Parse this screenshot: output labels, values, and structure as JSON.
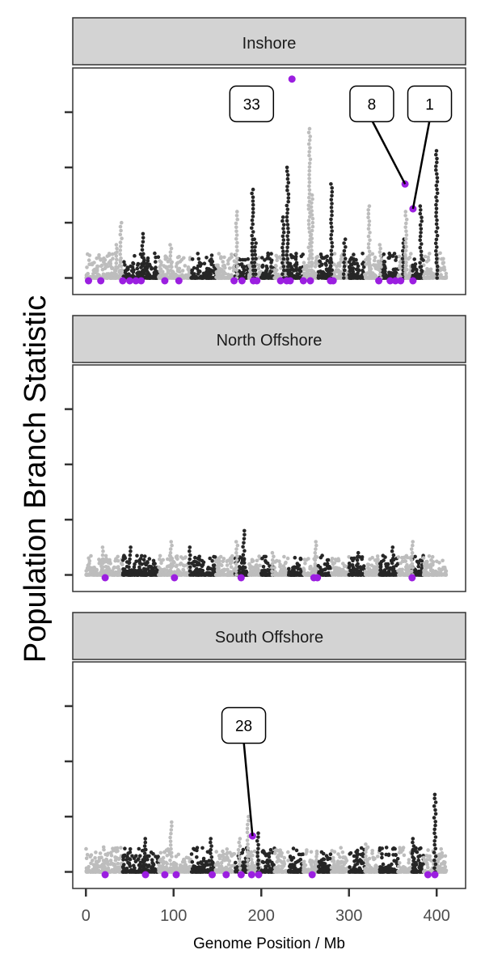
{
  "chart_data": {
    "type": "scatter",
    "ylabel": "Population Branch Statistic",
    "xlabel": "Genome Position / Mb",
    "x_ticks": [
      0,
      100,
      200,
      300,
      400
    ],
    "xlim": [
      -15,
      433
    ],
    "point_colors": [
      "#bdbdbd",
      "#262626"
    ],
    "highlight_color": "#9b1ee0",
    "panels": [
      {
        "title": "Inshore",
        "ylim": [
          -0.03,
          0.38
        ],
        "y_ticks": [
          0.0,
          0.1,
          0.2,
          0.3
        ],
        "outliers": [
          {
            "x": 235,
            "y": 0.36
          },
          {
            "x": 364,
            "y": 0.17
          },
          {
            "x": 373,
            "y": 0.125
          }
        ],
        "labels": [
          {
            "text": "33",
            "x": 189,
            "y": 0.315
          },
          {
            "text": "8",
            "x": 326,
            "y": 0.315,
            "target_x": 364,
            "target_y": 0.17
          },
          {
            "text": "1",
            "x": 392,
            "y": 0.315,
            "target_x": 373,
            "target_y": 0.125
          }
        ],
        "sweep_regions": [
          3,
          17,
          42,
          50,
          57,
          63,
          90,
          106,
          169,
          178,
          191,
          195,
          222,
          229,
          233,
          248,
          256,
          279,
          282,
          334,
          347,
          353,
          359,
          373
        ],
        "peaks": [
          {
            "x": 35,
            "h": 0.06,
            "c": 0
          },
          {
            "x": 40,
            "h": 0.1,
            "c": 0
          },
          {
            "x": 65,
            "h": 0.08,
            "c": 1
          },
          {
            "x": 97,
            "h": 0.06,
            "c": 0
          },
          {
            "x": 172,
            "h": 0.12,
            "c": 0
          },
          {
            "x": 190,
            "h": 0.16,
            "c": 1
          },
          {
            "x": 193,
            "h": 0.07,
            "c": 1
          },
          {
            "x": 225,
            "h": 0.11,
            "c": 1
          },
          {
            "x": 230,
            "h": 0.2,
            "c": 1
          },
          {
            "x": 255,
            "h": 0.27,
            "c": 0
          },
          {
            "x": 258,
            "h": 0.15,
            "c": 0
          },
          {
            "x": 280,
            "h": 0.17,
            "c": 1
          },
          {
            "x": 295,
            "h": 0.07,
            "c": 1
          },
          {
            "x": 323,
            "h": 0.13,
            "c": 0
          },
          {
            "x": 336,
            "h": 0.06,
            "c": 0
          },
          {
            "x": 362,
            "h": 0.07,
            "c": 1
          },
          {
            "x": 365,
            "h": 0.12,
            "c": 0
          },
          {
            "x": 382,
            "h": 0.13,
            "c": 1
          },
          {
            "x": 400,
            "h": 0.23,
            "c": 1
          }
        ]
      },
      {
        "title": "North Offshore",
        "ylim": [
          -0.03,
          0.38
        ],
        "y_ticks": [
          0.0,
          0.1,
          0.2,
          0.3
        ],
        "outliers": [],
        "labels": [],
        "sweep_regions": [
          22,
          101,
          177,
          260,
          264,
          372
        ],
        "peaks": [
          {
            "x": 20,
            "h": 0.05,
            "c": 0
          },
          {
            "x": 50,
            "h": 0.05,
            "c": 1
          },
          {
            "x": 97,
            "h": 0.06,
            "c": 0
          },
          {
            "x": 118,
            "h": 0.05,
            "c": 1
          },
          {
            "x": 172,
            "h": 0.06,
            "c": 0
          },
          {
            "x": 180,
            "h": 0.08,
            "c": 1
          },
          {
            "x": 213,
            "h": 0.04,
            "c": 0
          },
          {
            "x": 262,
            "h": 0.06,
            "c": 0
          },
          {
            "x": 310,
            "h": 0.04,
            "c": 1
          },
          {
            "x": 350,
            "h": 0.05,
            "c": 1
          },
          {
            "x": 372,
            "h": 0.06,
            "c": 0
          }
        ]
      },
      {
        "title": "South Offshore",
        "ylim": [
          -0.03,
          0.38
        ],
        "y_ticks": [
          0.0,
          0.1,
          0.2,
          0.3
        ],
        "outliers": [
          {
            "x": 190,
            "y": 0.065
          }
        ],
        "labels": [
          {
            "text": "28",
            "x": 180,
            "y": 0.265,
            "target_x": 190,
            "target_y": 0.065
          }
        ],
        "sweep_regions": [
          22,
          68,
          90,
          103,
          144,
          160,
          177,
          189,
          197,
          258,
          390,
          398
        ],
        "peaks": [
          {
            "x": 67,
            "h": 0.06,
            "c": 1
          },
          {
            "x": 97,
            "h": 0.09,
            "c": 0
          },
          {
            "x": 143,
            "h": 0.06,
            "c": 1
          },
          {
            "x": 175,
            "h": 0.06,
            "c": 0
          },
          {
            "x": 185,
            "h": 0.1,
            "c": 0
          },
          {
            "x": 196,
            "h": 0.07,
            "c": 1
          },
          {
            "x": 320,
            "h": 0.05,
            "c": 0
          },
          {
            "x": 373,
            "h": 0.06,
            "c": 1
          },
          {
            "x": 398,
            "h": 0.14,
            "c": 1
          }
        ]
      }
    ]
  }
}
